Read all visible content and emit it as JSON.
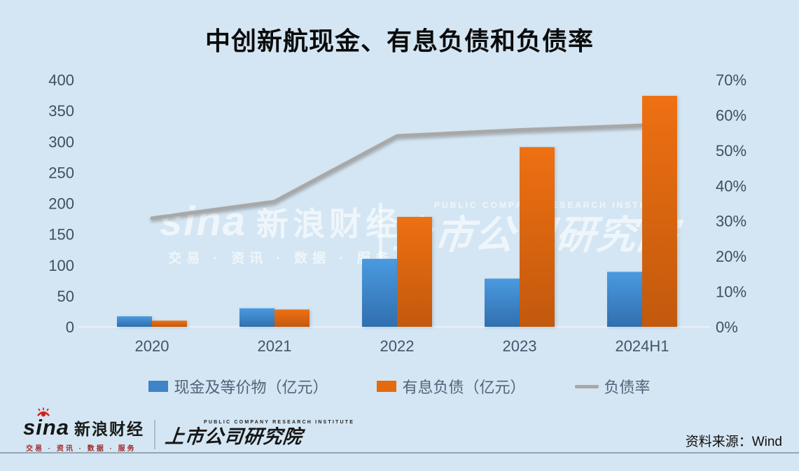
{
  "title": "中创新航现金、有息负债和负债率",
  "chart_data": {
    "type": "bar",
    "subtype": "grouped bars with secondary-axis line",
    "categories": [
      "2020",
      "2021",
      "2022",
      "2023",
      "2024H1"
    ],
    "series": [
      {
        "name": "现金及等价物（亿元）",
        "type": "bar",
        "axis": "left",
        "color": "#3e84c6",
        "values": [
          17,
          30,
          110,
          78,
          89
        ]
      },
      {
        "name": "有息负债（亿元）",
        "type": "bar",
        "axis": "left",
        "color": "#e56a0e",
        "values": [
          10,
          28,
          178,
          291,
          374
        ]
      },
      {
        "name": "负债率",
        "type": "line",
        "axis": "right",
        "color": "#a8a8a8",
        "values": [
          30.8,
          35.5,
          54.1,
          55.8,
          57.1
        ]
      }
    ],
    "left_axis": {
      "min": 0,
      "max": 400,
      "step": 50,
      "ticks": [
        "0",
        "50",
        "100",
        "150",
        "200",
        "250",
        "300",
        "350",
        "400"
      ]
    },
    "right_axis": {
      "min": 0,
      "max": 70,
      "step": 10,
      "unit": "%",
      "ticks": [
        "0%",
        "10%",
        "20%",
        "30%",
        "40%",
        "50%",
        "60%",
        "70%"
      ]
    },
    "grid": "baseline only",
    "legend_position": "bottom"
  },
  "brand": {
    "word": "sina",
    "cn": "新浪财经",
    "tagline": "交易 · 资讯 · 数据 · 服务",
    "inst_en": "PUBLIC COMPANY RESEARCH INSTITUTE",
    "inst_cn": "上市公司研究院"
  },
  "footer": {
    "source": "资料来源：Wind"
  },
  "colors": {
    "background": "#d4e6f3",
    "axis_text": "#3f4e63",
    "bar_blue": "#3e84c6",
    "bar_orange": "#e56a0e",
    "line_gray": "#a8a8a8"
  }
}
